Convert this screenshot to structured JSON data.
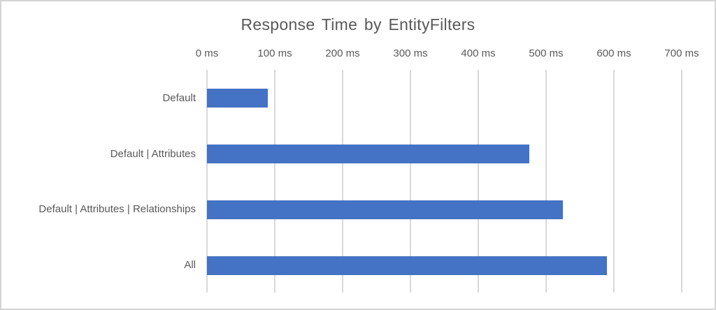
{
  "frame": {
    "background": "#ffffff",
    "border_color": "#d4d4d4"
  },
  "chart_data": {
    "type": "bar",
    "orientation": "horizontal",
    "title": "Response Time by EntityFilters",
    "categories": [
      "Default",
      "Default | Attributes",
      "Default | Attributes | Relationships",
      "All"
    ],
    "values": [
      90,
      475,
      525,
      590
    ],
    "unit": "ms",
    "xlabel": "",
    "ylabel": "",
    "x_axis": {
      "position": "top",
      "min": 0,
      "max": 700,
      "tick_step": 100,
      "ticks": [
        0,
        100,
        200,
        300,
        400,
        500,
        600,
        700
      ],
      "tick_labels": [
        "0 ms",
        "100 ms",
        "200 ms",
        "300 ms",
        "400 ms",
        "500 ms",
        "600 ms",
        "700 ms"
      ]
    },
    "grid": true,
    "gridlines": "vertical",
    "legend": false,
    "data_labels": false,
    "colors": {
      "bar": "#4472c4",
      "gridline": "#d9d9d9",
      "text": "#595959"
    }
  }
}
